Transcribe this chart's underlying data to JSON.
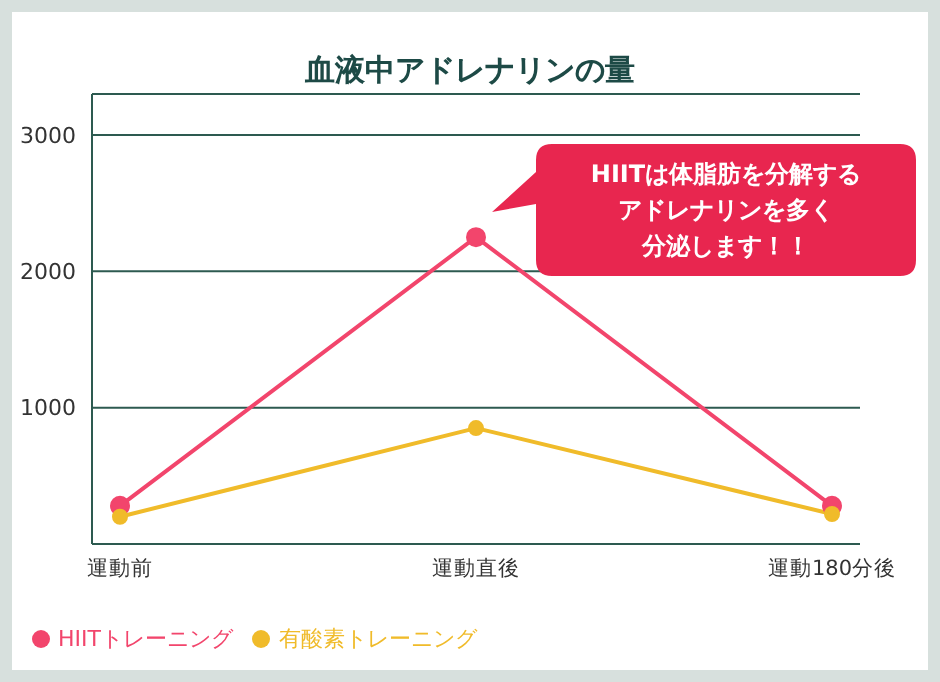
{
  "chart_data": {
    "type": "line",
    "title": "血液中アドレナリンの量",
    "categories": [
      "運動前",
      "運動直後",
      "運動180分後"
    ],
    "series": [
      {
        "name": "HIITトレーニング",
        "color": "#f2456c",
        "values": [
          280,
          2250,
          280
        ]
      },
      {
        "name": "有酸素トレーニング",
        "color": "#f0bb2a",
        "values": [
          200,
          850,
          220
        ]
      }
    ],
    "ylim": [
      0,
      3300
    ],
    "yticks": [
      1000,
      2000,
      3000
    ],
    "grid": "y",
    "legend": "bottom left",
    "marker": "circle",
    "annotations": [
      "HIITは体脂肪を分解する",
      "アドレナリンを多く",
      "分泌します！！"
    ]
  }
}
